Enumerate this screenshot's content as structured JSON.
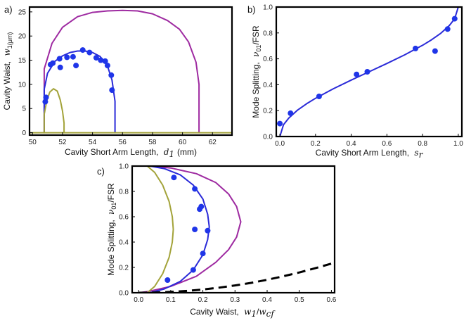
{
  "chart_data": [
    {
      "type": "line",
      "panel_label": "a)",
      "xlabel_text": "Cavity Short Arm Length,",
      "xlabel_math": "d",
      "xlabel_sub": "1",
      "xlabel_unit": "(mm)",
      "ylabel_text": "Cavity Waist,",
      "ylabel_math": "w",
      "ylabel_sub": "1(μm)",
      "xlim": [
        49.8,
        63.3
      ],
      "ylim": [
        -0.5,
        26
      ],
      "xticks": [
        50,
        52,
        54,
        56,
        58,
        60,
        62
      ],
      "yticks": [
        0,
        5,
        10,
        15,
        20,
        25
      ],
      "series": [
        {
          "name": "purple",
          "color": "#9e2aa1",
          "x": [
            50.78,
            50.78,
            51.3,
            52.0,
            53.0,
            54.0,
            55.0,
            56.0,
            57.0,
            58.0,
            59.0,
            59.8,
            60.4,
            60.9,
            61.1,
            61.1
          ],
          "y": [
            0,
            13.2,
            18.5,
            21.8,
            24.0,
            24.9,
            25.2,
            25.3,
            25.2,
            24.6,
            23.2,
            21.4,
            18.8,
            14.6,
            10.0,
            0
          ]
        },
        {
          "name": "blue",
          "color": "#2a2ad8",
          "x": [
            50.78,
            50.78,
            51.0,
            51.5,
            52.0,
            52.5,
            53.0,
            53.5,
            54.0,
            54.5,
            55.0,
            55.3,
            55.5,
            55.5
          ],
          "y": [
            0,
            9.0,
            12.3,
            14.8,
            15.9,
            16.6,
            16.9,
            16.9,
            16.6,
            15.8,
            13.8,
            10.9,
            6.5,
            0
          ]
        },
        {
          "name": "olive",
          "color": "#a3a33a",
          "x": [
            50.78,
            50.78,
            50.95,
            51.15,
            51.4,
            51.65,
            51.85,
            52.0,
            52.1,
            52.1
          ],
          "y": [
            0,
            3.8,
            6.6,
            8.4,
            9.1,
            8.6,
            6.8,
            4.5,
            2.0,
            0
          ]
        },
        {
          "name": "baseline",
          "color": "#a3a33a",
          "x": [
            49.8,
            63.3
          ],
          "y": [
            0,
            0
          ]
        }
      ],
      "points": {
        "color": "#1f35e8",
        "x": [
          50.85,
          50.9,
          51.2,
          51.35,
          51.8,
          51.85,
          52.3,
          52.7,
          52.9,
          53.35,
          53.8,
          54.25,
          54.55,
          54.85,
          55.0,
          55.25,
          55.3
        ],
        "y": [
          6.4,
          7.3,
          14.1,
          14.4,
          15.3,
          13.5,
          15.6,
          15.7,
          13.9,
          17.1,
          16.6,
          15.5,
          15.0,
          14.8,
          13.9,
          11.9,
          8.8
        ]
      }
    },
    {
      "type": "line",
      "panel_label": "b)",
      "xlabel_text": "Cavity Short Arm Length,",
      "xlabel_math": "s",
      "xlabel_sub": "r",
      "ylabel_text": "Mode Splitting,",
      "ylabel_math": "ν",
      "ylabel_sub": "01",
      "ylabel_tail": "/FSR",
      "xlim": [
        -0.02,
        1.02
      ],
      "ylim": [
        0,
        1
      ],
      "xticks": [
        0,
        0.2,
        0.4,
        0.6,
        0.8,
        1.0
      ],
      "xtick_labels": [
        "0.0",
        "0.2",
        "0.4",
        "0.6",
        "0.8",
        "1.0"
      ],
      "yticks": [
        0,
        0.2,
        0.4,
        0.6,
        0.8,
        1.0
      ],
      "ytick_labels": [
        "0.0",
        "0.2",
        "0.4",
        "0.6",
        "0.8",
        "1.0"
      ],
      "series": [
        {
          "name": "theory",
          "color": "#2a2ad8",
          "x": [
            0.0,
            0.02,
            0.05,
            0.1,
            0.15,
            0.2,
            0.3,
            0.4,
            0.5,
            0.6,
            0.7,
            0.8,
            0.85,
            0.9,
            0.95,
            0.98,
            1.0
          ],
          "y": [
            0.0,
            0.09,
            0.143,
            0.205,
            0.253,
            0.295,
            0.369,
            0.436,
            0.5,
            0.564,
            0.631,
            0.705,
            0.747,
            0.795,
            0.857,
            0.91,
            1.0
          ]
        }
      ],
      "points": {
        "color": "#1f35e8",
        "x": [
          0.0,
          0.06,
          0.22,
          0.43,
          0.49,
          0.76,
          0.87,
          0.94,
          0.98
        ],
        "y": [
          0.1,
          0.18,
          0.31,
          0.48,
          0.5,
          0.68,
          0.66,
          0.83,
          0.91
        ]
      }
    },
    {
      "type": "line",
      "panel_label": "c)",
      "xlabel_text": "Cavity Waist,",
      "xlabel_math": "w",
      "xlabel_sub": "1",
      "xlabel_tail": "/",
      "xlabel_math2": "w",
      "xlabel_sub2": "cf",
      "ylabel_text": "Mode Splitting,",
      "ylabel_math": "ν",
      "ylabel_sub": "01",
      "ylabel_tail": "/FSR",
      "xlim": [
        -0.02,
        0.61
      ],
      "ylim": [
        0,
        1
      ],
      "xticks": [
        0,
        0.1,
        0.2,
        0.3,
        0.4,
        0.5,
        0.6
      ],
      "xtick_labels": [
        "0.0",
        "0.1",
        "0.2",
        "0.3",
        "0.4",
        "0.5",
        "0.6"
      ],
      "yticks": [
        0,
        0.2,
        0.4,
        0.6,
        0.8,
        1.0
      ],
      "ytick_labels": [
        "0.0",
        "0.2",
        "0.4",
        "0.6",
        "0.8",
        "1.0"
      ],
      "series": [
        {
          "name": "purple",
          "color": "#9e2aa1",
          "x": [
            0.035,
            0.1,
            0.18,
            0.24,
            0.28,
            0.305,
            0.318,
            0.305,
            0.28,
            0.24,
            0.18,
            0.1,
            0.03,
            0.0
          ],
          "y": [
            1.0,
            0.985,
            0.94,
            0.87,
            0.78,
            0.68,
            0.56,
            0.44,
            0.34,
            0.24,
            0.13,
            0.05,
            0.01,
            0.0
          ]
        },
        {
          "name": "blue",
          "color": "#2a2ad8",
          "x": [
            0.035,
            0.08,
            0.13,
            0.17,
            0.2,
            0.215,
            0.22,
            0.215,
            0.2,
            0.17,
            0.13,
            0.08,
            0.035
          ],
          "y": [
            1.0,
            0.98,
            0.93,
            0.85,
            0.74,
            0.62,
            0.52,
            0.42,
            0.3,
            0.18,
            0.09,
            0.03,
            0.0
          ]
        },
        {
          "name": "olive",
          "color": "#a3a33a",
          "x": [
            0.027,
            0.05,
            0.075,
            0.095,
            0.105,
            0.108,
            0.105,
            0.095,
            0.075,
            0.05,
            0.027
          ],
          "y": [
            1.0,
            0.95,
            0.85,
            0.72,
            0.6,
            0.5,
            0.4,
            0.28,
            0.15,
            0.05,
            0.0
          ]
        },
        {
          "name": "dashed",
          "color": "#000000",
          "dash": true,
          "x": [
            0.0,
            0.05,
            0.1,
            0.15,
            0.2,
            0.25,
            0.3,
            0.35,
            0.4,
            0.45,
            0.5,
            0.55,
            0.6
          ],
          "y": [
            0.0,
            0.0016,
            0.0064,
            0.0144,
            0.0256,
            0.04,
            0.058,
            0.078,
            0.102,
            0.13,
            0.16,
            0.194,
            0.23
          ]
        }
      ],
      "points": {
        "color": "#1f35e8",
        "x": [
          0.09,
          0.11,
          0.17,
          0.175,
          0.175,
          0.19,
          0.195,
          0.2,
          0.215
        ],
        "y": [
          0.1,
          0.91,
          0.18,
          0.5,
          0.82,
          0.66,
          0.68,
          0.31,
          0.49
        ]
      }
    }
  ]
}
